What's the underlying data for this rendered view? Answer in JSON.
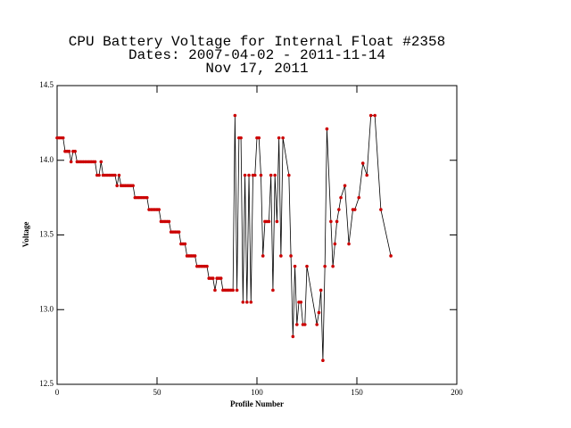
{
  "chart_data": {
    "type": "line",
    "title": "CPU Battery Voltage for Internal Float #2358",
    "subtitle": [
      "Dates:  2007-04-02 -  2011-11-14",
      "Nov 17, 2011"
    ],
    "x_label": "Profile Number",
    "y_label": "Voltage",
    "xlim": [
      0,
      200
    ],
    "xticks": [
      0,
      50,
      100,
      150,
      200
    ],
    "ylim": [
      12.5,
      14.5
    ],
    "yticks": [
      12.5,
      {
        "value": 13,
        "label": "13.0"
      },
      13.5,
      {
        "value": 14,
        "label": "14.0"
      },
      14.5
    ],
    "series": [
      {
        "name": "Voltage",
        "color": "#000000",
        "marker_color": "#cc0000",
        "x": [
          0,
          1,
          2,
          3,
          4,
          5,
          6,
          7,
          8,
          9,
          10,
          11,
          12,
          13,
          14,
          15,
          16,
          17,
          18,
          19,
          20,
          21,
          22,
          23,
          24,
          25,
          26,
          27,
          28,
          29,
          30,
          31,
          32,
          33,
          34,
          35,
          36,
          37,
          38,
          39,
          40,
          41,
          42,
          43,
          44,
          45,
          46,
          47,
          48,
          49,
          50,
          51,
          52,
          53,
          54,
          55,
          56,
          57,
          58,
          59,
          60,
          61,
          62,
          63,
          64,
          65,
          66,
          67,
          68,
          69,
          70,
          71,
          72,
          73,
          74,
          75,
          76,
          77,
          78,
          79,
          80,
          81,
          82,
          83,
          84,
          85,
          86,
          87,
          88,
          89,
          90,
          91,
          92,
          93,
          94,
          95,
          96,
          97,
          98,
          99,
          100,
          101,
          102,
          103,
          104,
          105,
          106,
          107,
          108,
          109,
          110,
          111,
          112,
          113,
          116,
          117,
          118,
          119,
          120,
          121,
          122,
          123,
          124,
          125,
          130,
          131,
          132,
          133,
          134,
          135,
          137,
          138,
          139,
          140,
          141,
          142,
          144,
          146,
          148,
          149,
          151,
          153,
          155,
          157,
          159,
          162,
          167
        ],
        "values": [
          14.15,
          14.15,
          14.15,
          14.15,
          14.06,
          14.06,
          14.06,
          13.99,
          14.06,
          14.06,
          13.99,
          13.99,
          13.99,
          13.99,
          13.99,
          13.99,
          13.99,
          13.99,
          13.99,
          13.99,
          13.9,
          13.9,
          13.99,
          13.9,
          13.9,
          13.9,
          13.9,
          13.9,
          13.9,
          13.9,
          13.83,
          13.9,
          13.83,
          13.83,
          13.83,
          13.83,
          13.83,
          13.83,
          13.83,
          13.75,
          13.75,
          13.75,
          13.75,
          13.75,
          13.75,
          13.75,
          13.67,
          13.67,
          13.67,
          13.67,
          13.67,
          13.67,
          13.59,
          13.59,
          13.59,
          13.59,
          13.59,
          13.52,
          13.52,
          13.52,
          13.52,
          13.52,
          13.44,
          13.44,
          13.44,
          13.36,
          13.36,
          13.36,
          13.36,
          13.36,
          13.29,
          13.29,
          13.29,
          13.29,
          13.29,
          13.29,
          13.21,
          13.21,
          13.21,
          13.13,
          13.21,
          13.21,
          13.21,
          13.13,
          13.13,
          13.13,
          13.13,
          13.13,
          13.13,
          14.3,
          13.13,
          14.15,
          14.15,
          13.05,
          13.9,
          13.05,
          13.9,
          13.05,
          13.9,
          13.9,
          14.15,
          14.15,
          13.9,
          13.36,
          13.59,
          13.59,
          13.59,
          13.9,
          13.13,
          13.9,
          13.59,
          14.15,
          13.36,
          14.15,
          13.9,
          13.36,
          12.82,
          13.29,
          12.9,
          13.05,
          13.05,
          12.9,
          12.9,
          13.29,
          12.9,
          12.98,
          13.13,
          12.66,
          13.29,
          14.21,
          13.59,
          13.29,
          13.44,
          13.59,
          13.67,
          13.75,
          13.83,
          13.44,
          13.67,
          13.67,
          13.75,
          13.98,
          13.9,
          14.3,
          14.3,
          13.67,
          13.36
        ]
      }
    ]
  }
}
